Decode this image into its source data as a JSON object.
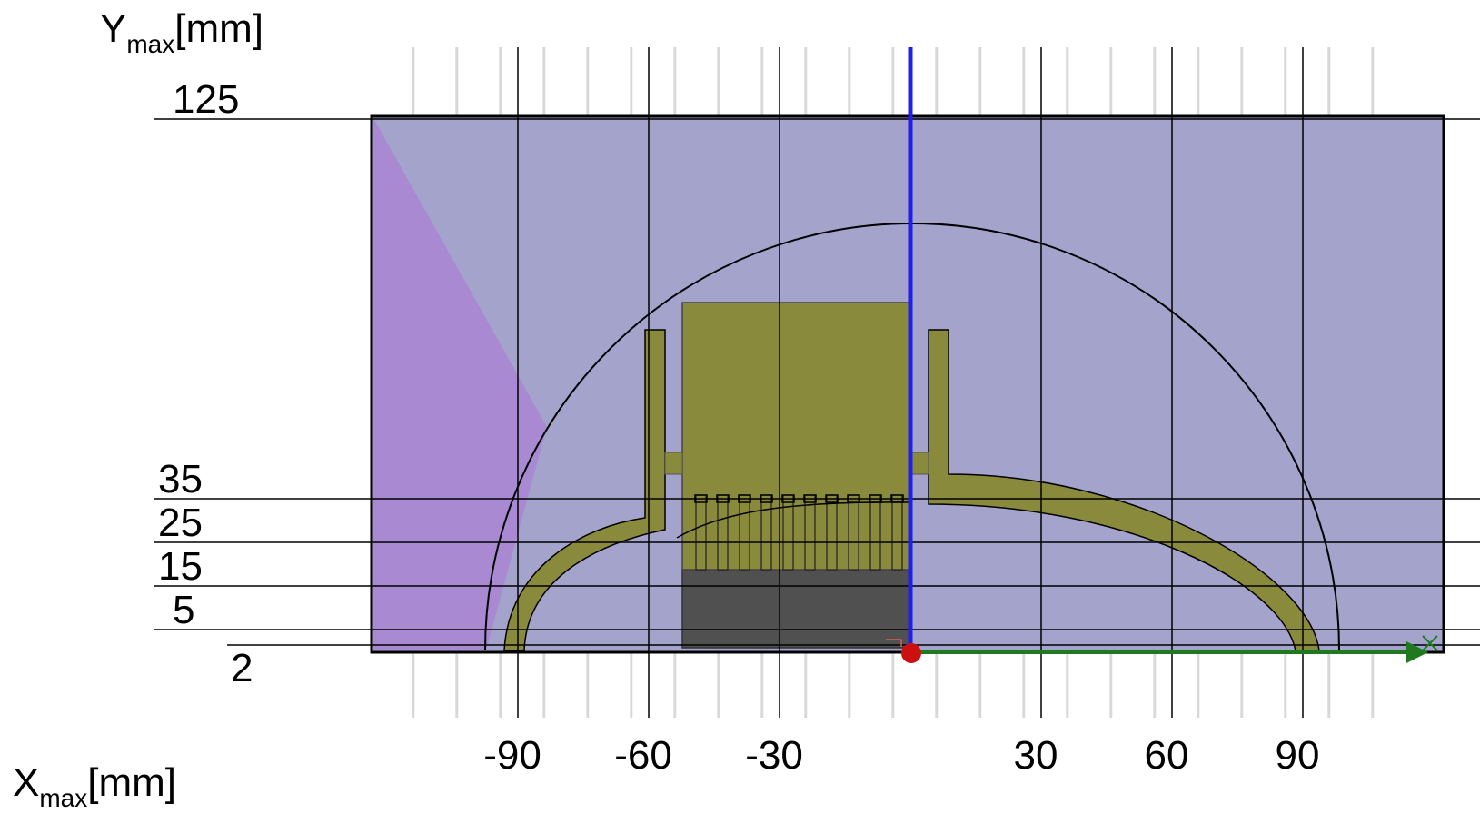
{
  "axes": {
    "y_title": {
      "main": "Y",
      "sub": "max",
      "unit": "[mm]"
    },
    "x_title": {
      "main": "X",
      "sub": "max",
      "unit": "[mm]"
    },
    "x_ticks": [
      {
        "value": -90,
        "label": "-90"
      },
      {
        "value": -60,
        "label": "-60"
      },
      {
        "value": -30,
        "label": "-30"
      },
      {
        "value": 30,
        "label": "30"
      },
      {
        "value": 60,
        "label": "60"
      },
      {
        "value": 90,
        "label": "90"
      }
    ],
    "y_ticks": [
      {
        "value": 125,
        "label": "125"
      },
      {
        "value": 35,
        "label": "35"
      },
      {
        "value": 25,
        "label": "25"
      },
      {
        "value": 15,
        "label": "15"
      },
      {
        "value": 5,
        "label": "5"
      },
      {
        "value": 2,
        "label": "2"
      }
    ],
    "x_range": [
      -124,
      124
    ],
    "y_range": [
      0,
      125
    ]
  },
  "colors": {
    "domain_fill": "#a3a3cc",
    "boundary_strip": "#a98ad2",
    "conductor": "#8a8a3c",
    "core_dark": "#505050",
    "symmetry_axis": "#1e1ef0",
    "ground_line": "#1f7a1f",
    "origin_marker": "#cc1010",
    "grid": "#d8d8d8"
  }
}
